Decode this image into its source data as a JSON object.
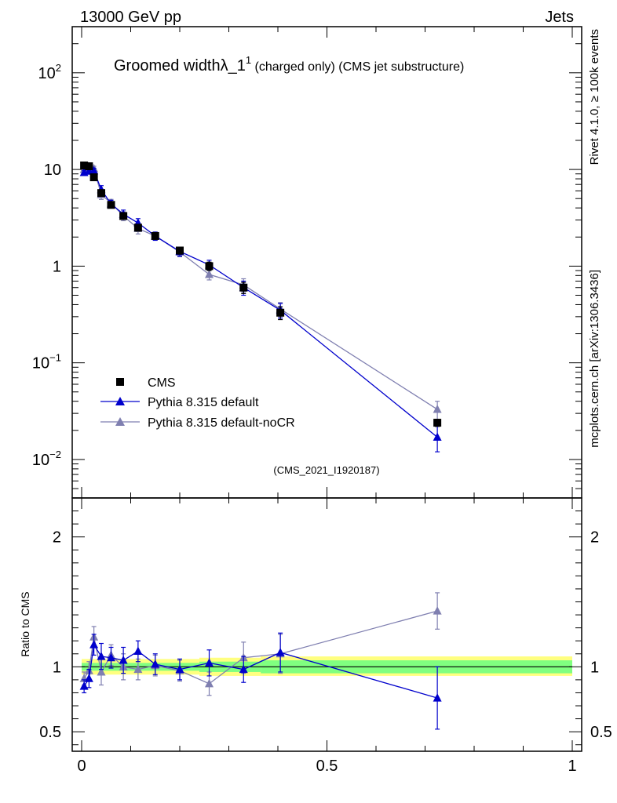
{
  "header": {
    "energy_label": "13000 GeV pp",
    "category_label": "Jets"
  },
  "side": {
    "version_label": "Rivet 4.1.0, ≥ 100k events",
    "site_label": "mcplots.cern.ch [arXiv:1306.3436]"
  },
  "colors": {
    "cms": "#000000",
    "default": "#0000cc",
    "nocr": "#7f7fb0",
    "band_outer": "#ffff80",
    "band_inner": "#80ff80"
  },
  "chart_data": [
    {
      "type": "line",
      "title_main": "Groomed widthλ_1",
      "title_sup": "1",
      "title_rest": " (charged only) (CMS jet substructure)",
      "analysis_label": "(CMS_2021_I1920187)",
      "yscale": "log",
      "xlim": [
        0,
        1
      ],
      "ylim": [
        0.004,
        300
      ],
      "y_ticks": [
        {
          "value": 100,
          "base": "10",
          "exp": "2"
        },
        {
          "value": 10,
          "base": "10",
          "exp": ""
        },
        {
          "value": 1,
          "base": "1",
          "exp": ""
        },
        {
          "value": 0.1,
          "base": "10",
          "exp": "−1"
        },
        {
          "value": 0.01,
          "base": "10",
          "exp": "−2"
        }
      ],
      "legend": {
        "position": "bottom-left",
        "entries": [
          "CMS",
          "Pythia 8.315 default",
          "Pythia 8.315 default-noCR"
        ]
      },
      "series": [
        {
          "name": "CMS",
          "style": "square",
          "color": "#000000",
          "x": [
            0.005,
            0.015,
            0.025,
            0.04,
            0.06,
            0.085,
            0.115,
            0.15,
            0.2,
            0.26,
            0.33,
            0.405,
            0.725
          ],
          "y": [
            11.0,
            10.8,
            8.3,
            5.7,
            4.3,
            3.3,
            2.5,
            2.05,
            1.45,
            1.0,
            0.6,
            0.33,
            0.024
          ],
          "err": [
            0.8,
            0.8,
            0.5,
            0.4,
            0.3,
            0.25,
            0.2,
            0.15,
            0.12,
            0.1,
            0.08,
            0.05,
            0.002
          ]
        },
        {
          "name": "Pythia 8.315 default",
          "style": "triangle",
          "color": "#0000cc",
          "x": [
            0.005,
            0.015,
            0.025,
            0.04,
            0.06,
            0.085,
            0.115,
            0.15,
            0.2,
            0.26,
            0.33,
            0.405,
            0.725
          ],
          "y": [
            9.3,
            9.6,
            9.7,
            6.2,
            4.4,
            3.45,
            2.8,
            2.05,
            1.42,
            1.03,
            0.6,
            0.35,
            0.017
          ],
          "err": [
            0.5,
            0.5,
            0.6,
            0.6,
            0.4,
            0.35,
            0.3,
            0.2,
            0.15,
            0.12,
            0.1,
            0.06,
            0.005
          ]
        },
        {
          "name": "Pythia 8.315 default-noCR",
          "style": "triangle",
          "color": "#7f7fb0",
          "x": [
            0.005,
            0.015,
            0.025,
            0.04,
            0.06,
            0.085,
            0.115,
            0.15,
            0.2,
            0.26,
            0.33,
            0.405,
            0.725
          ],
          "y": [
            10.0,
            10.5,
            10.2,
            5.5,
            4.5,
            3.3,
            2.45,
            2.05,
            1.4,
            0.82,
            0.64,
            0.36,
            0.033
          ],
          "err": [
            0.5,
            0.6,
            0.6,
            0.6,
            0.4,
            0.35,
            0.3,
            0.2,
            0.15,
            0.1,
            0.1,
            0.06,
            0.007
          ]
        }
      ]
    },
    {
      "type": "line",
      "ylabel": "Ratio to CMS",
      "xlim": [
        0,
        1
      ],
      "ylim": [
        0.35,
        2.3
      ],
      "x_ticks": [
        {
          "value": 0,
          "label": "0"
        },
        {
          "value": 0.5,
          "label": "0.5"
        },
        {
          "value": 1,
          "label": "1"
        }
      ],
      "y_ticks": [
        {
          "value": 0.5,
          "label": "0.5"
        },
        {
          "value": 1,
          "label": "1"
        },
        {
          "value": 2,
          "label": "2"
        }
      ],
      "band": {
        "outer": [
          {
            "x0": 0.0,
            "x1": 0.24,
            "lo": 0.94,
            "hi": 1.06
          },
          {
            "x0": 0.24,
            "x1": 0.365,
            "lo": 0.93,
            "hi": 1.07
          },
          {
            "x0": 0.365,
            "x1": 1.0,
            "lo": 0.93,
            "hi": 1.08
          }
        ],
        "inner": [
          {
            "x0": 0.0,
            "x1": 0.24,
            "lo": 0.97,
            "hi": 1.03
          },
          {
            "x0": 0.24,
            "x1": 0.365,
            "lo": 0.96,
            "hi": 1.04
          },
          {
            "x0": 0.365,
            "x1": 1.0,
            "lo": 0.95,
            "hi": 1.05
          }
        ]
      },
      "series": [
        {
          "name": "Pythia 8.315 default",
          "color": "#0000cc",
          "x": [
            0.005,
            0.015,
            0.025,
            0.04,
            0.06,
            0.085,
            0.115,
            0.15,
            0.2,
            0.26,
            0.33,
            0.405,
            0.725
          ],
          "y": [
            0.85,
            0.91,
            1.17,
            1.08,
            1.07,
            1.05,
            1.12,
            1.02,
            0.98,
            1.03,
            0.98,
            1.11,
            0.76
          ],
          "err": [
            0.05,
            0.07,
            0.08,
            0.1,
            0.08,
            0.1,
            0.08,
            0.08,
            0.08,
            0.1,
            0.1,
            0.15,
            0.24
          ]
        },
        {
          "name": "Pythia 8.315 default-noCR",
          "color": "#7f7fb0",
          "x": [
            0.005,
            0.015,
            0.025,
            0.04,
            0.06,
            0.085,
            0.115,
            0.15,
            0.2,
            0.26,
            0.33,
            0.405,
            0.725
          ],
          "y": [
            0.91,
            0.97,
            1.23,
            0.96,
            1.09,
            1.0,
            0.98,
            1.01,
            0.97,
            0.87,
            1.07,
            1.1,
            1.43
          ],
          "err": [
            0.05,
            0.07,
            0.08,
            0.1,
            0.08,
            0.1,
            0.08,
            0.08,
            0.08,
            0.09,
            0.12,
            0.15,
            0.14
          ]
        }
      ]
    }
  ]
}
